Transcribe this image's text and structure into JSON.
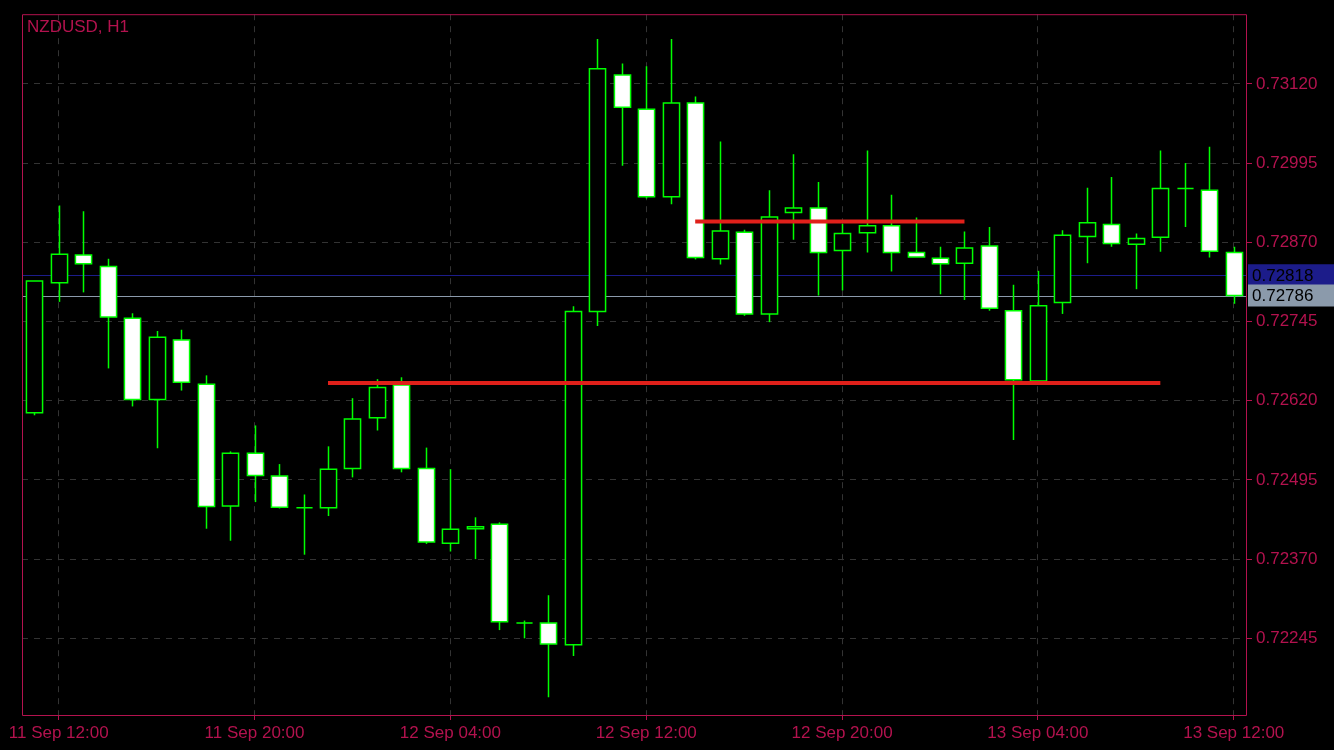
{
  "chart_data": {
    "type": "candlestick",
    "title": "NZDUSD, H1",
    "categories": [
      null,
      "11 Sep 12:00",
      null,
      null,
      null,
      null,
      null,
      null,
      null,
      "11 Sep 20:00",
      null,
      null,
      null,
      null,
      null,
      null,
      null,
      "12 Sep 04:00",
      null,
      null,
      null,
      null,
      null,
      null,
      null,
      "12 Sep 12:00",
      null,
      null,
      null,
      null,
      null,
      null,
      null,
      "12 Sep 20:00",
      null,
      null,
      null,
      null,
      null,
      null,
      null,
      "13 Sep 04:00",
      null,
      null,
      null,
      null,
      null,
      null,
      null,
      "13 Sep 12:00"
    ],
    "series": [
      {
        "type": "line",
        "color": "#e0201a",
        "values": [
          null,
          null,
          null,
          null,
          null,
          null,
          null,
          null,
          null,
          null,
          null,
          null,
          null,
          null,
          null,
          null,
          null,
          null,
          null,
          null,
          null,
          null,
          null,
          null,
          null,
          null,
          null,
          0.72903,
          0.72903,
          0.72903,
          0.72903,
          0.72903,
          0.72903,
          0.72903,
          0.72903,
          0.72903,
          0.72903,
          0.72903,
          0.72903,
          null,
          null,
          null,
          null,
          null,
          null,
          null,
          null,
          null,
          null,
          null
        ]
      },
      {
        "type": "line",
        "color": "#e0201a",
        "values": [
          null,
          null,
          null,
          null,
          null,
          null,
          null,
          null,
          null,
          null,
          null,
          null,
          0.72648,
          0.72648,
          0.72648,
          0.72648,
          0.72648,
          0.72648,
          0.72648,
          0.72648,
          0.72648,
          0.72648,
          0.72648,
          0.72648,
          0.72648,
          0.72648,
          0.72648,
          0.72648,
          0.72648,
          0.72648,
          0.72648,
          0.72648,
          0.72648,
          0.72648,
          0.72648,
          0.72648,
          0.72648,
          0.72648,
          0.72648,
          0.72648,
          0.72648,
          0.72648,
          0.72648,
          0.72648,
          0.72648,
          0.72648,
          0.72648,
          null,
          null,
          null
        ]
      },
      {
        "type": "candlestick",
        "color": "#00ff00",
        "colors": [
          "#000000",
          "#000000",
          "#ffffff",
          "#ffffff",
          "#ffffff",
          "#000000",
          "#ffffff",
          "#ffffff",
          "#000000",
          "#ffffff",
          "#ffffff",
          "#00ff00",
          "#000000",
          "#000000",
          "#000000",
          "#ffffff",
          "#ffffff",
          "#000000",
          "#000000",
          "#ffffff",
          "#00ff00",
          "#ffffff",
          "#000000",
          "#000000",
          "#ffffff",
          "#ffffff",
          "#000000",
          "#ffffff",
          "#000000",
          "#ffffff",
          "#000000",
          "#000000",
          "#ffffff",
          "#000000",
          "#000000",
          "#ffffff",
          "#ffffff",
          "#ffffff",
          "#000000",
          "#ffffff",
          "#ffffff",
          "#000000",
          "#000000",
          "#000000",
          "#ffffff",
          "#000000",
          "#000000",
          "#00ff00",
          "#ffffff",
          "#ffffff"
        ],
        "ohlc": [
          [
            0.72601,
            0.72809,
            0.72597,
            0.72809
          ],
          [
            0.72806,
            0.72928,
            0.72776,
            0.72851
          ],
          [
            0.7285,
            0.72919,
            0.72791,
            0.72836
          ],
          [
            0.72832,
            0.72844,
            0.72671,
            0.72752
          ],
          [
            0.7275,
            0.72758,
            0.72611,
            0.72622
          ],
          [
            0.72622,
            0.7273,
            0.72545,
            0.7272
          ],
          [
            0.72716,
            0.72732,
            0.72636,
            0.72649
          ],
          [
            0.72646,
            0.7266,
            0.72418,
            0.72453
          ],
          [
            0.72454,
            0.7254,
            0.72399,
            0.72537
          ],
          [
            0.72537,
            0.72581,
            0.7246,
            0.72502
          ],
          [
            0.72501,
            0.7252,
            0.7245,
            0.72452
          ],
          [
            0.72451,
            0.72472,
            0.72377,
            0.72451
          ],
          [
            0.72451,
            0.72548,
            0.72438,
            0.72512
          ],
          [
            0.72513,
            0.72624,
            0.72499,
            0.72591
          ],
          [
            0.72593,
            0.72654,
            0.72573,
            0.72641
          ],
          [
            0.72645,
            0.72657,
            0.72507,
            0.72513
          ],
          [
            0.72513,
            0.72546,
            0.72394,
            0.72397
          ],
          [
            0.72395,
            0.72512,
            0.72382,
            0.72417
          ],
          [
            0.72418,
            0.72436,
            0.7237,
            0.72421
          ],
          [
            0.72425,
            0.72428,
            0.72258,
            0.72271
          ],
          [
            0.72269,
            0.72273,
            0.72245,
            0.72269
          ],
          [
            0.72269,
            0.72313,
            0.72152,
            0.72236
          ],
          [
            0.72235,
            0.72769,
            0.72217,
            0.72761
          ],
          [
            0.72761,
            0.73191,
            0.72738,
            0.73144
          ],
          [
            0.73134,
            0.73152,
            0.72991,
            0.73083
          ],
          [
            0.7308,
            0.73148,
            0.72939,
            0.72942
          ],
          [
            0.72942,
            0.73191,
            0.7293,
            0.7309
          ],
          [
            0.7309,
            0.731,
            0.72843,
            0.72846
          ],
          [
            0.72844,
            0.73029,
            0.72835,
            0.72888
          ],
          [
            0.72886,
            0.7289,
            0.72754,
            0.72757
          ],
          [
            0.72757,
            0.72952,
            0.72744,
            0.7291
          ],
          [
            0.72917,
            0.73009,
            0.72874,
            0.72924
          ],
          [
            0.72924,
            0.72965,
            0.72786,
            0.72854
          ],
          [
            0.72857,
            0.72899,
            0.72794,
            0.72884
          ],
          [
            0.72885,
            0.73015,
            0.72854,
            0.72896
          ],
          [
            0.72896,
            0.72945,
            0.72824,
            0.72854
          ],
          [
            0.72854,
            0.72909,
            0.72847,
            0.72847
          ],
          [
            0.72845,
            0.72863,
            0.72788,
            0.72836
          ],
          [
            0.72837,
            0.72887,
            0.72779,
            0.72861
          ],
          [
            0.72864,
            0.72894,
            0.72762,
            0.72766
          ],
          [
            0.72762,
            0.72803,
            0.72558,
            0.72653
          ],
          [
            0.72651,
            0.72825,
            0.72651,
            0.7277
          ],
          [
            0.72775,
            0.72889,
            0.72757,
            0.72881
          ],
          [
            0.72879,
            0.72956,
            0.72837,
            0.72901
          ],
          [
            0.72898,
            0.72973,
            0.72863,
            0.72868
          ],
          [
            0.72867,
            0.72884,
            0.72796,
            0.72876
          ],
          [
            0.72878,
            0.73015,
            0.72855,
            0.72955
          ],
          [
            0.72955,
            0.72995,
            0.72894,
            0.72955
          ],
          [
            0.72952,
            0.73021,
            0.72846,
            0.72856
          ],
          [
            0.72854,
            0.72863,
            0.72773,
            0.72786
          ]
        ]
      }
    ],
    "ylim": [
      0.72124,
      0.7323
    ],
    "yticks": [
      {
        "value": 0.72245,
        "label": "0.72245"
      },
      {
        "value": 0.7237,
        "label": "0.72370"
      },
      {
        "value": 0.72495,
        "label": "0.72495"
      },
      {
        "value": 0.7262,
        "label": "0.72620"
      },
      {
        "value": 0.72745,
        "label": "0.72745"
      },
      {
        "value": 0.7287,
        "label": "0.72870"
      },
      {
        "value": 0.72995,
        "label": "0.72995"
      },
      {
        "value": 0.7312,
        "label": "0.73120"
      }
    ],
    "ref_lines": [
      {
        "axis": "y",
        "value": 0.72818,
        "label": "0.72818",
        "color": "#1c1c8a"
      },
      {
        "axis": "y",
        "value": 0.72786,
        "label": "0.72786",
        "color": "#8b9aab"
      }
    ],
    "grid": true,
    "legend": false
  }
}
